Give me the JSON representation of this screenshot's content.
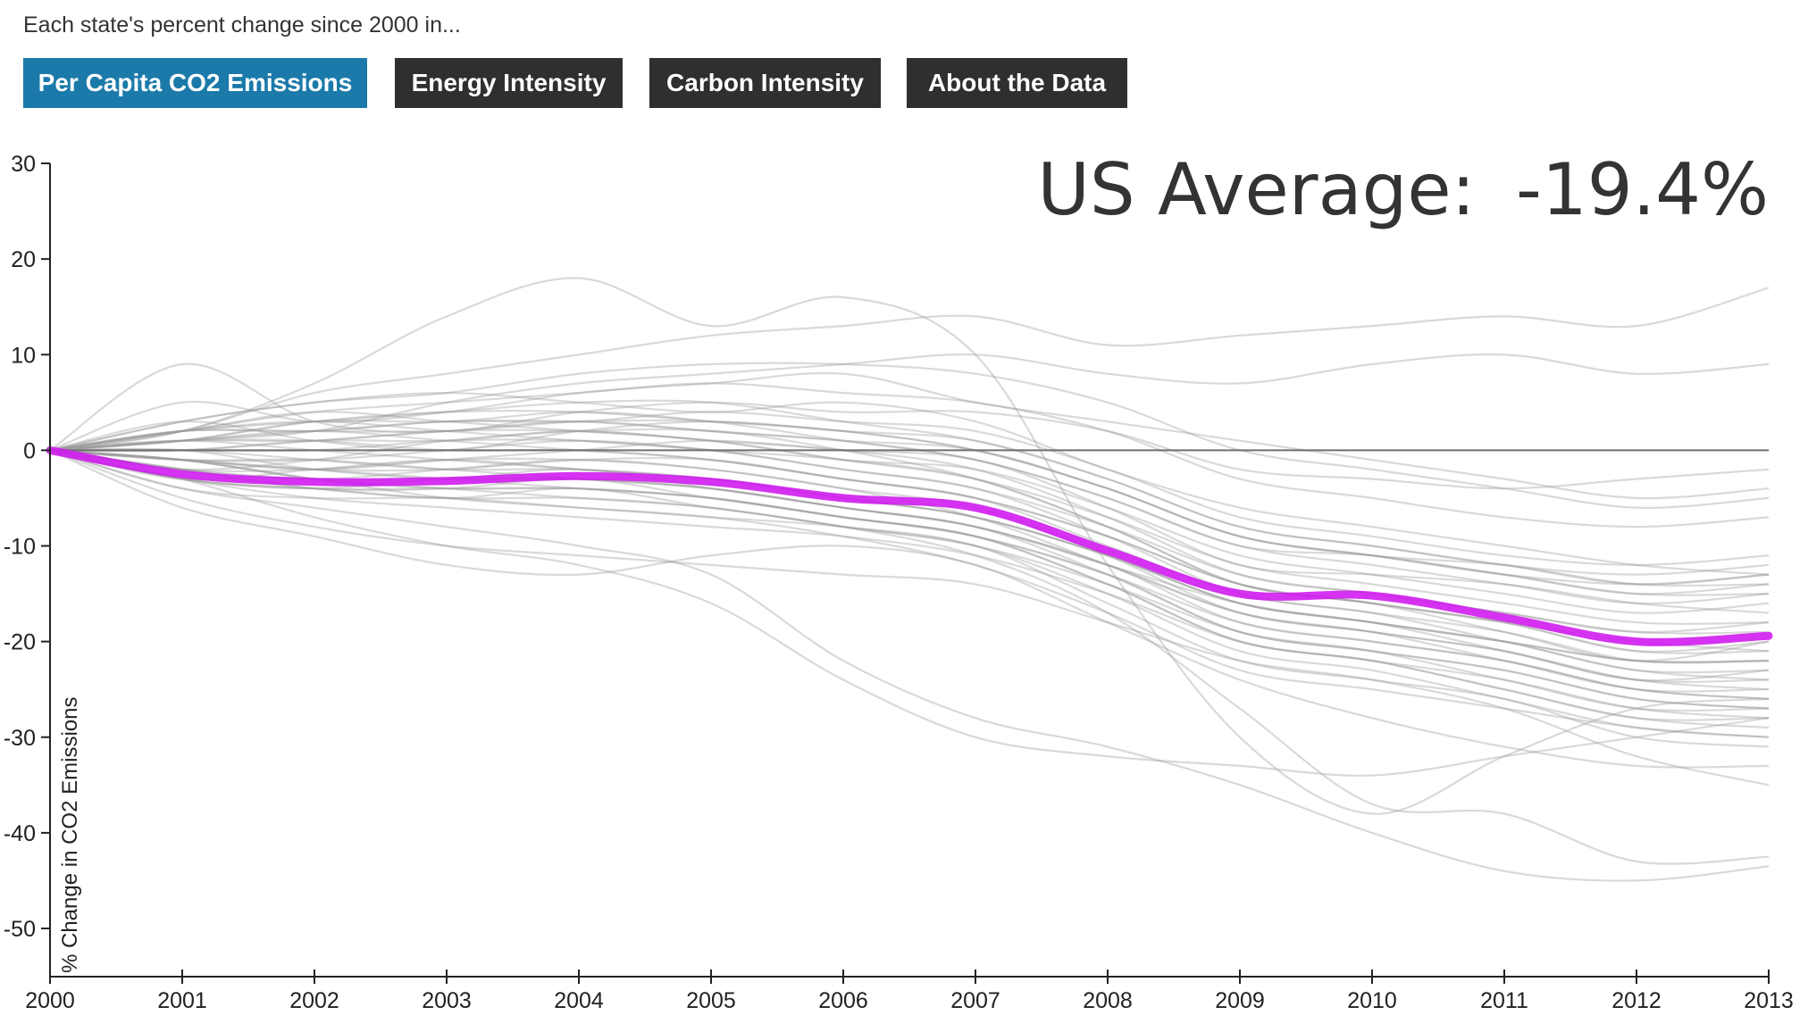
{
  "intro_text": "Each state's percent change since 2000 in...",
  "tabs": [
    {
      "label": "Per Capita CO2 Emissions",
      "active": true
    },
    {
      "label": "Energy Intensity",
      "active": false
    },
    {
      "label": "Carbon Intensity",
      "active": false
    },
    {
      "label": "About the Data",
      "active": false
    }
  ],
  "colors": {
    "tab_active": "#1b7aaa",
    "tab_inactive": "#2f2f2f",
    "state_line": "#c9c9c9",
    "average_line": "#d01cf0",
    "zero_line": "#6f6f6f",
    "axis": "#222222"
  },
  "chart_data": {
    "type": "line",
    "ylabel": "% Change in CO2 Emissions",
    "ylim": [
      -55,
      30
    ],
    "yticks": [
      30,
      20,
      10,
      0,
      -10,
      -20,
      -30,
      -40,
      -50
    ],
    "x": [
      2000,
      2001,
      2002,
      2003,
      2004,
      2005,
      2006,
      2007,
      2008,
      2009,
      2010,
      2011,
      2012,
      2013
    ],
    "annotation": {
      "label": "US Average:",
      "value": "-19.4%"
    },
    "average_series": {
      "values": [
        0,
        -2.5,
        -3.3,
        -3.2,
        -2.7,
        -3.3,
        -5,
        -6,
        -10.5,
        -15,
        -15.2,
        -17.5,
        -20,
        -19.4
      ]
    },
    "state_series": [
      {
        "values": [
          0,
          -3,
          -4,
          -5,
          -4,
          -6,
          -8,
          -11,
          -17,
          -27,
          -37,
          -38,
          -43,
          -42.5
        ]
      },
      {
        "values": [
          0,
          -4,
          -6,
          -8,
          -10,
          -13,
          -22,
          -28,
          -31,
          -35,
          -40,
          -44,
          -45,
          -43.5
        ]
      },
      {
        "values": [
          0,
          1,
          2,
          5,
          7,
          8,
          9,
          10,
          8,
          7,
          9,
          10,
          8,
          9
        ]
      },
      {
        "values": [
          0,
          2,
          6,
          8,
          10,
          12,
          13,
          14,
          11,
          12,
          13,
          14,
          13,
          17
        ]
      },
      {
        "values": [
          0,
          2,
          7,
          14,
          18,
          13,
          16,
          10,
          -12,
          -30,
          -38,
          -32,
          -27,
          -26
        ]
      },
      {
        "values": [
          0,
          9,
          3,
          2,
          4,
          5,
          4,
          4,
          2,
          -2,
          -3,
          -4,
          -3,
          -2
        ]
      },
      {
        "values": [
          0,
          5,
          3,
          4,
          6,
          7,
          8,
          5,
          3,
          1,
          -1,
          -3,
          -5,
          -4
        ]
      },
      {
        "values": [
          0,
          -5,
          -8,
          -10,
          -11,
          -12,
          -13,
          -14,
          -18,
          -22,
          -24,
          -27,
          -32,
          -35
        ]
      },
      {
        "values": [
          0,
          -3,
          -7,
          -10,
          -12,
          -16,
          -24,
          -30,
          -32,
          -33,
          -34,
          -32,
          -30,
          -28
        ]
      },
      {
        "values": [
          0,
          -6,
          -9,
          -12,
          -13,
          -11,
          -10,
          -12,
          -18,
          -24,
          -28,
          -31,
          -33,
          -33
        ]
      },
      {
        "values": [
          0,
          -4,
          -5,
          -5,
          -6,
          -7,
          -8,
          -10,
          -16,
          -22,
          -24,
          -26,
          -30,
          -31
        ]
      },
      {
        "values": [
          0,
          3,
          5,
          6,
          5,
          4,
          5,
          3,
          -2,
          -6,
          -8,
          -10,
          -12,
          -13
        ]
      },
      {
        "values": [
          0,
          -2,
          -3,
          -2,
          -1,
          -2,
          -4,
          -6,
          -11,
          -17,
          -19,
          -21,
          -24,
          -25
        ]
      },
      {
        "values": [
          0,
          1,
          3,
          3,
          4,
          3,
          1,
          -1,
          -5,
          -10,
          -11,
          -13,
          -15,
          -15
        ]
      },
      {
        "values": [
          0,
          -1,
          -2,
          -1,
          0,
          1,
          0,
          -1,
          -6,
          -12,
          -13,
          -14,
          -16,
          -17
        ]
      },
      {
        "values": [
          0,
          2,
          4,
          5,
          6,
          7,
          6,
          5,
          2,
          -3,
          -5,
          -7,
          -8,
          -7
        ]
      },
      {
        "values": [
          0,
          -2,
          -1,
          1,
          2,
          2,
          0,
          -3,
          -8,
          -14,
          -16,
          -19,
          -22,
          -20
        ]
      },
      {
        "values": [
          0,
          -3,
          -4,
          -3,
          -3,
          -4,
          -6,
          -8,
          -13,
          -19,
          -21,
          -23,
          -26,
          -27
        ]
      },
      {
        "values": [
          0,
          1,
          0,
          -1,
          -2,
          -3,
          -5,
          -7,
          -11,
          -16,
          -18,
          -20,
          -22,
          -22
        ]
      },
      {
        "values": [
          0,
          -1,
          -3,
          -5,
          -6,
          -7,
          -9,
          -12,
          -17,
          -23,
          -25,
          -27,
          -29,
          -30
        ]
      },
      {
        "values": [
          0,
          0,
          1,
          2,
          3,
          2,
          1,
          0,
          -4,
          -9,
          -11,
          -12,
          -14,
          -14
        ]
      },
      {
        "values": [
          0,
          -2,
          -4,
          -4,
          -3,
          -5,
          -7,
          -9,
          -14,
          -20,
          -22,
          -25,
          -28,
          -29
        ]
      },
      {
        "values": [
          0,
          3,
          1,
          0,
          2,
          3,
          2,
          1,
          -3,
          -8,
          -10,
          -12,
          -13,
          -12
        ]
      },
      {
        "values": [
          0,
          -1,
          -1,
          0,
          1,
          0,
          -2,
          -4,
          -9,
          -15,
          -17,
          -20,
          -23,
          -24
        ]
      },
      {
        "values": [
          0,
          2,
          2,
          3,
          3,
          4,
          3,
          2,
          -2,
          -7,
          -9,
          -11,
          -12,
          -11
        ]
      },
      {
        "values": [
          0,
          -3,
          -5,
          -6,
          -7,
          -8,
          -9,
          -11,
          -15,
          -20,
          -22,
          -24,
          -27,
          -28
        ]
      },
      {
        "values": [
          0,
          0,
          -2,
          -3,
          -3,
          -4,
          -6,
          -8,
          -12,
          -18,
          -20,
          -22,
          -25,
          -26
        ]
      },
      {
        "values": [
          0,
          1,
          2,
          1,
          0,
          -1,
          -3,
          -5,
          -9,
          -14,
          -16,
          -18,
          -20,
          -21
        ]
      },
      {
        "values": [
          0,
          -2,
          -2,
          -1,
          -1,
          -2,
          -4,
          -7,
          -12,
          -17,
          -19,
          -21,
          -24,
          -23
        ]
      },
      {
        "values": [
          0,
          2,
          4,
          3,
          2,
          1,
          -1,
          -3,
          -7,
          -12,
          -14,
          -16,
          -18,
          -18
        ]
      },
      {
        "values": [
          0,
          -1,
          -3,
          -4,
          -5,
          -6,
          -8,
          -10,
          -14,
          -19,
          -21,
          -24,
          -27,
          -27
        ]
      },
      {
        "values": [
          0,
          1,
          1,
          2,
          2,
          1,
          -1,
          -2,
          -6,
          -11,
          -13,
          -15,
          -17,
          -16
        ]
      },
      {
        "values": [
          0,
          -3,
          -2,
          -1,
          -2,
          -3,
          -5,
          -7,
          -11,
          -16,
          -18,
          -21,
          -24,
          -24
        ]
      },
      {
        "values": [
          0,
          2,
          3,
          4,
          5,
          5,
          3,
          1,
          -3,
          -8,
          -10,
          -12,
          -14,
          -13
        ]
      },
      {
        "values": [
          0,
          -1,
          -2,
          -2,
          -1,
          -1,
          -3,
          -5,
          -10,
          -15,
          -17,
          -19,
          -22,
          -22
        ]
      },
      {
        "values": [
          0,
          0,
          1,
          1,
          2,
          1,
          0,
          -2,
          -7,
          -13,
          -15,
          -17,
          -19,
          -19
        ]
      },
      {
        "values": [
          0,
          -2,
          -3,
          -3,
          -2,
          -4,
          -6,
          -8,
          -12,
          -17,
          -19,
          -22,
          -25,
          -25
        ]
      },
      {
        "values": [
          0,
          3,
          5,
          6,
          8,
          9,
          9,
          8,
          5,
          0,
          -2,
          -4,
          -6,
          -5
        ]
      },
      {
        "values": [
          0,
          -1,
          -2,
          -3,
          -4,
          -5,
          -7,
          -9,
          -13,
          -18,
          -20,
          -22,
          -25,
          -26
        ]
      },
      {
        "values": [
          0,
          1,
          2,
          3,
          3,
          2,
          1,
          -1,
          -5,
          -10,
          -12,
          -14,
          -16,
          -15
        ]
      },
      {
        "values": [
          0,
          -2,
          -4,
          -5,
          -5,
          -6,
          -8,
          -10,
          -15,
          -21,
          -23,
          -26,
          -29,
          -30
        ]
      },
      {
        "values": [
          0,
          0,
          0,
          1,
          1,
          0,
          -1,
          -3,
          -8,
          -14,
          -16,
          -18,
          -21,
          -21
        ]
      },
      {
        "values": [
          0,
          2,
          3,
          2,
          1,
          0,
          -2,
          -4,
          -8,
          -13,
          -15,
          -17,
          -19,
          -18
        ]
      },
      {
        "values": [
          0,
          -1,
          -1,
          -2,
          -3,
          -4,
          -6,
          -8,
          -12,
          -16,
          -18,
          -20,
          -23,
          -23
        ]
      },
      {
        "values": [
          0,
          1,
          3,
          4,
          4,
          3,
          2,
          0,
          -4,
          -9,
          -11,
          -13,
          -15,
          -14
        ]
      },
      {
        "values": [
          0,
          -3,
          -4,
          -4,
          -4,
          -5,
          -7,
          -9,
          -14,
          -20,
          -22,
          -25,
          -28,
          -28
        ]
      },
      {
        "values": [
          0,
          0,
          -1,
          -2,
          -2,
          -3,
          -5,
          -7,
          -11,
          -16,
          -18,
          -20,
          -22,
          -22
        ]
      },
      {
        "values": [
          0,
          2,
          2,
          2,
          3,
          3,
          2,
          0,
          -4,
          -9,
          -11,
          -13,
          -14,
          -13
        ]
      },
      {
        "values": [
          0,
          -1,
          -3,
          -4,
          -4,
          -5,
          -7,
          -9,
          -13,
          -19,
          -21,
          -23,
          -26,
          -27
        ]
      },
      {
        "values": [
          0,
          1,
          1,
          0,
          0,
          -1,
          -3,
          -5,
          -9,
          -14,
          -16,
          -18,
          -21,
          -20
        ]
      }
    ]
  }
}
